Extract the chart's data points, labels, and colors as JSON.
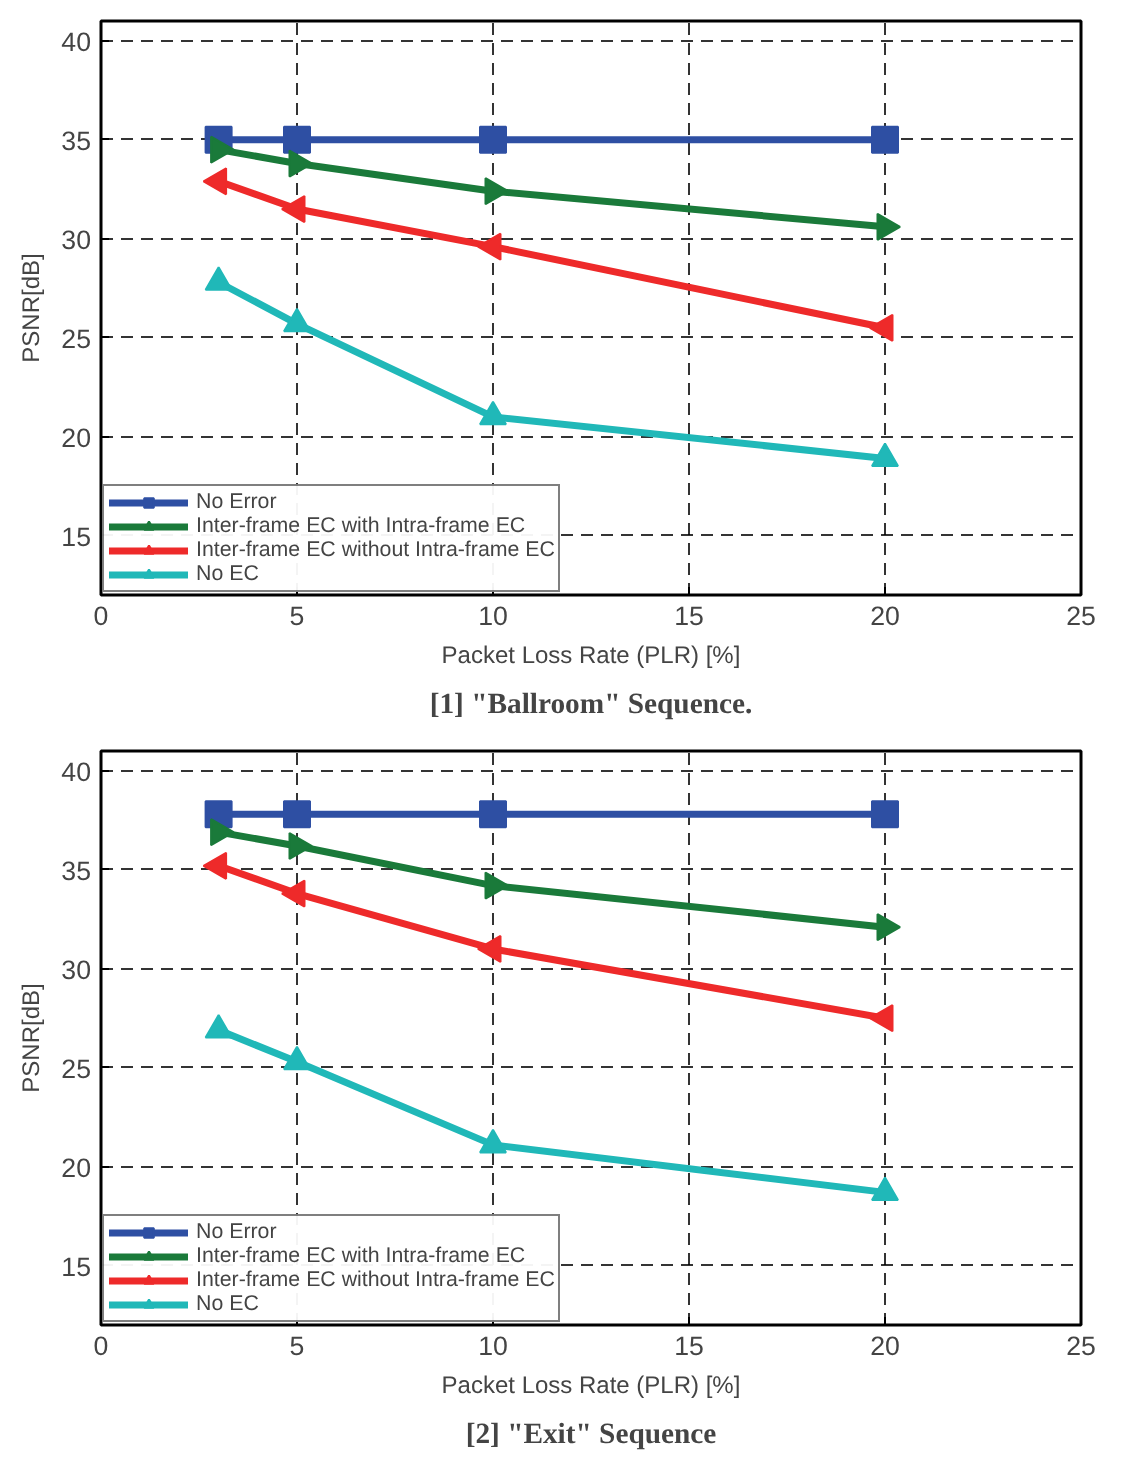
{
  "chart_data": [
    {
      "type": "line",
      "title": "[1] \"Ballroom\" Sequence.",
      "xlabel": "Packet Loss Rate (PLR) [%]",
      "ylabel": "PSNR[dB]",
      "x": [
        3,
        5,
        10,
        20
      ],
      "xlim": [
        0,
        25
      ],
      "xticks": [
        0,
        5,
        10,
        15,
        20,
        25
      ],
      "ylim": [
        12,
        41
      ],
      "yticks": [
        15,
        20,
        25,
        30,
        35,
        40
      ],
      "grid": true,
      "legend": "bottom left",
      "series": [
        {
          "name": "No Error",
          "color": "#2e4fa3",
          "marker": "square",
          "values": [
            35,
            35,
            35,
            35
          ]
        },
        {
          "name": "Inter-frame EC with Intra-frame EC",
          "color": "#1a7a3a",
          "marker": "triangle_right",
          "values": [
            34.5,
            33.8,
            32.4,
            30.6
          ]
        },
        {
          "name": "Inter-frame EC without Intra-frame EC",
          "color": "#ee2a2a",
          "marker": "triangle_left",
          "values": [
            32.9,
            31.5,
            29.6,
            25.5
          ]
        },
        {
          "name": "No EC",
          "color": "#20b8b8",
          "marker": "triangle",
          "values": [
            27.8,
            25.7,
            21.0,
            18.9
          ]
        }
      ]
    },
    {
      "type": "line",
      "title": "[2] \"Exit\" Sequence",
      "xlabel": "Packet Loss Rate (PLR) [%]",
      "ylabel": "PSNR[dB]",
      "x": [
        3,
        5,
        10,
        20
      ],
      "xlim": [
        0,
        25
      ],
      "xticks": [
        0,
        5,
        10,
        15,
        20,
        25
      ],
      "ylim": [
        12,
        41
      ],
      "yticks": [
        15,
        20,
        25,
        30,
        35,
        40
      ],
      "grid": true,
      "legend": "bottom left",
      "series": [
        {
          "name": "No Error",
          "color": "#2e4fa3",
          "marker": "square",
          "values": [
            37.8,
            37.8,
            37.8,
            37.8
          ]
        },
        {
          "name": "Inter-frame EC with Intra-frame EC",
          "color": "#1a7a3a",
          "marker": "triangle_right",
          "values": [
            36.9,
            36.2,
            34.2,
            32.1
          ]
        },
        {
          "name": "Inter-frame EC without Intra-frame EC",
          "color": "#ee2a2a",
          "marker": "triangle_left",
          "values": [
            35.2,
            33.8,
            31.0,
            27.5
          ]
        },
        {
          "name": "No EC",
          "color": "#20b8b8",
          "marker": "triangle",
          "values": [
            26.9,
            25.3,
            21.1,
            18.7
          ]
        }
      ]
    }
  ]
}
